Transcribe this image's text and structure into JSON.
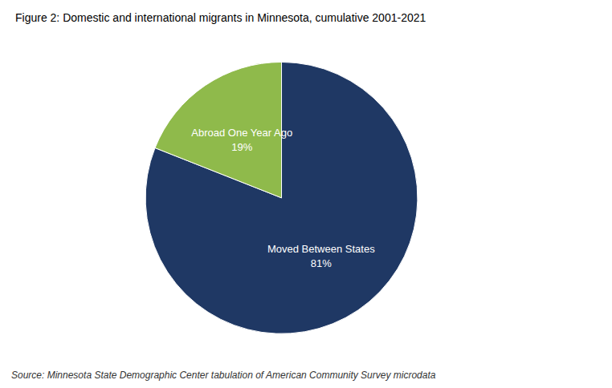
{
  "chart_data": {
    "type": "pie",
    "title": "Figure 2: Domestic and international migrants in Minnesota, cumulative 2001-2021",
    "categories": [
      "Moved Between States",
      "Abroad One Year Ago"
    ],
    "values": [
      81,
      19
    ],
    "value_labels": [
      "81%",
      "19%"
    ],
    "colors": [
      "#1f3864",
      "#8fba4b"
    ],
    "data_labels": true,
    "annotations": [
      "Source: Minnesota State Demographic Center tabulation of American Community Survey microdata"
    ]
  }
}
